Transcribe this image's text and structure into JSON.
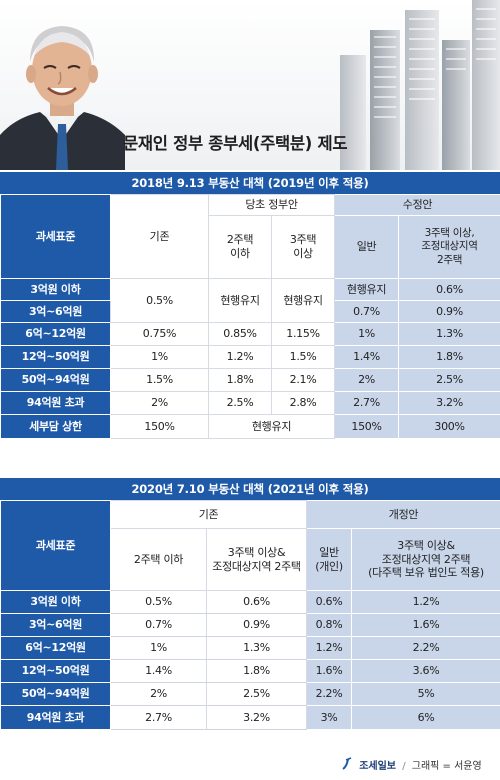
{
  "title": "문재인 정부 종부세(주택분) 제도",
  "table1": {
    "banner": "2018년 9.13 부동산 대책 (2019년 이후 적용)",
    "row_header": "과세표준",
    "col_existing": "기존",
    "col_initial": "당초 정부안",
    "col_initial_a": "2주택\n이하",
    "col_initial_b": "3주택\n이상",
    "col_revised": "수정안",
    "col_revised_a": "일반",
    "col_revised_b": "3주택 이상,\n조정대상지역\n2주택",
    "merged_existing_1": "0.5%",
    "merged_initial_a_1": "현행유지",
    "merged_initial_b_1": "현행유지",
    "merged_revised_a_1": "현행유지",
    "merged_initial_cap": "현행유지",
    "rows": [
      {
        "label": "3억원 이하",
        "revised_b": "0.6%"
      },
      {
        "label": "3억~6억원",
        "revised_a": "0.7%",
        "revised_b": "0.9%"
      },
      {
        "label": "6억~12억원",
        "existing": "0.75%",
        "initial_a": "0.85%",
        "initial_b": "1.15%",
        "revised_a": "1%",
        "revised_b": "1.3%"
      },
      {
        "label": "12억~50억원",
        "existing": "1%",
        "initial_a": "1.2%",
        "initial_b": "1.5%",
        "revised_a": "1.4%",
        "revised_b": "1.8%"
      },
      {
        "label": "50억~94억원",
        "existing": "1.5%",
        "initial_a": "1.8%",
        "initial_b": "2.1%",
        "revised_a": "2%",
        "revised_b": "2.5%"
      },
      {
        "label": "94억원 초과",
        "existing": "2%",
        "initial_a": "2.5%",
        "initial_b": "2.8%",
        "revised_a": "2.7%",
        "revised_b": "3.2%"
      },
      {
        "label": "세부담 상한",
        "existing": "150%",
        "revised_a": "150%",
        "revised_b": "300%"
      }
    ]
  },
  "table2": {
    "banner": "2020년 7.10 부동산 대책 (2021년 이후 적용)",
    "row_header": "과세표준",
    "col_existing": "기존",
    "col_existing_a": "2주택 이하",
    "col_existing_b": "3주택 이상&\n조정대상지역 2주택",
    "col_revised": "개정안",
    "col_revised_a": "일반\n(개인)",
    "col_revised_b": "3주택 이상&\n조정대상지역 2주택\n(다주택 보유 법인도 적용)",
    "rows": [
      {
        "label": "3억원 이하",
        "existing_a": "0.5%",
        "existing_b": "0.6%",
        "revised_a": "0.6%",
        "revised_b": "1.2%"
      },
      {
        "label": "3억~6억원",
        "existing_a": "0.7%",
        "existing_b": "0.9%",
        "revised_a": "0.8%",
        "revised_b": "1.6%"
      },
      {
        "label": "6억~12억원",
        "existing_a": "1%",
        "existing_b": "1.3%",
        "revised_a": "1.2%",
        "revised_b": "2.2%"
      },
      {
        "label": "12억~50억원",
        "existing_a": "1.4%",
        "existing_b": "1.8%",
        "revised_a": "1.6%",
        "revised_b": "3.6%"
      },
      {
        "label": "50억~94억원",
        "existing_a": "2%",
        "existing_b": "2.5%",
        "revised_a": "2.2%",
        "revised_b": "5%"
      },
      {
        "label": "94억원 초과",
        "existing_a": "2.7%",
        "existing_b": "3.2%",
        "revised_a": "3%",
        "revised_b": "6%"
      }
    ]
  },
  "footer": {
    "brand": "조세일보",
    "separator": "/",
    "credit": "그래픽 = 서윤영"
  }
}
